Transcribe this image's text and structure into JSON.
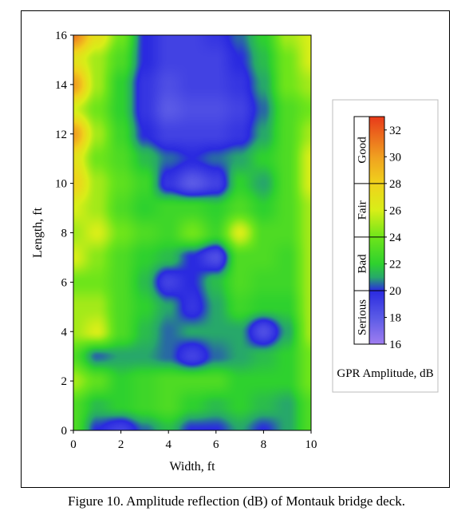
{
  "caption": "Figure 10. Amplitude reflection (dB) of Montauk bridge deck.",
  "chart_data": {
    "type": "heatmap",
    "title": "",
    "xlabel": "Width, ft",
    "ylabel": "Length, ft",
    "xlim": [
      0,
      10
    ],
    "ylim": [
      0,
      16
    ],
    "x_ticks": [
      "0",
      "2",
      "4",
      "6",
      "8",
      "10"
    ],
    "y_ticks": [
      "0",
      "2",
      "4",
      "6",
      "8",
      "10",
      "12",
      "14",
      "16"
    ],
    "colorbar": {
      "title": "GPR Amplitude, dB",
      "range": [
        16,
        33
      ],
      "ticks": [
        "16",
        "18",
        "20",
        "22",
        "24",
        "26",
        "28",
        "30",
        "32"
      ],
      "colors": [
        {
          "v": 16,
          "c": "#a07ef0"
        },
        {
          "v": 18,
          "c": "#5a5ae6"
        },
        {
          "v": 20,
          "c": "#2a2ae0"
        },
        {
          "v": 21,
          "c": "#27a86a"
        },
        {
          "v": 22,
          "c": "#2ed12e"
        },
        {
          "v": 24,
          "c": "#6ee51a"
        },
        {
          "v": 26,
          "c": "#d8ee18"
        },
        {
          "v": 28,
          "c": "#f0d21c"
        },
        {
          "v": 30,
          "c": "#f0a020"
        },
        {
          "v": 33,
          "c": "#e83a1a"
        }
      ],
      "categories": [
        {
          "label": "Good",
          "from": 28,
          "to": 33
        },
        {
          "label": "Fair",
          "from": 24,
          "to": 28
        },
        {
          "label": "Bad",
          "from": 20,
          "to": 24
        },
        {
          "label": "Serious",
          "from": 16,
          "to": 20
        }
      ]
    },
    "x": [
      0,
      1,
      2,
      3,
      4,
      5,
      6,
      7,
      8,
      9,
      10
    ],
    "y": [
      16,
      15,
      14,
      13,
      12,
      11,
      10,
      9,
      8,
      7,
      6,
      5,
      4,
      3,
      2,
      1,
      0
    ],
    "z": [
      [
        31,
        27,
        24,
        20,
        19,
        19,
        19.5,
        20.5,
        22,
        25,
        26
      ],
      [
        27,
        25,
        23,
        20,
        19,
        19,
        19,
        20,
        21.5,
        24,
        26
      ],
      [
        30,
        25,
        22,
        19.5,
        18.5,
        19,
        19,
        19.5,
        21,
        24,
        25
      ],
      [
        26,
        24,
        22,
        19.5,
        18,
        18.5,
        18.5,
        19,
        20.5,
        23,
        24
      ],
      [
        30,
        25,
        22.5,
        20,
        19,
        19,
        19,
        19.5,
        21,
        23,
        25
      ],
      [
        27,
        24,
        23,
        21.5,
        20.5,
        20,
        20.5,
        21,
        22,
        23,
        26
      ],
      [
        28,
        25,
        23.5,
        22.5,
        19.5,
        18,
        19,
        22,
        21,
        23,
        26
      ],
      [
        26,
        25,
        23,
        22,
        22.5,
        22.5,
        22,
        23,
        22,
        23,
        25
      ],
      [
        25,
        26,
        24,
        23,
        22.5,
        24,
        22.5,
        26,
        23,
        23,
        25
      ],
      [
        26,
        24.5,
        23,
        22,
        21.5,
        20,
        18.5,
        23,
        23,
        22.5,
        25
      ],
      [
        24,
        24,
        23,
        21.5,
        19,
        20,
        21.5,
        23,
        22.5,
        22.5,
        25
      ],
      [
        25,
        25,
        23,
        22,
        21,
        19.5,
        21,
        22.5,
        22,
        22,
        25
      ],
      [
        25,
        26,
        23,
        21.5,
        20.5,
        21,
        21,
        21,
        18.5,
        21,
        25
      ],
      [
        23,
        20.5,
        21,
        21,
        20.5,
        19,
        20.5,
        21,
        21.5,
        22,
        24
      ],
      [
        25,
        23.5,
        22,
        22.5,
        23,
        23,
        23,
        22,
        22,
        22,
        24
      ],
      [
        23,
        21.5,
        22,
        22.5,
        23,
        22,
        21.5,
        22,
        21.5,
        21,
        23
      ],
      [
        23,
        20,
        19,
        20.5,
        21.5,
        20,
        20,
        21,
        20,
        21,
        23
      ]
    ]
  }
}
